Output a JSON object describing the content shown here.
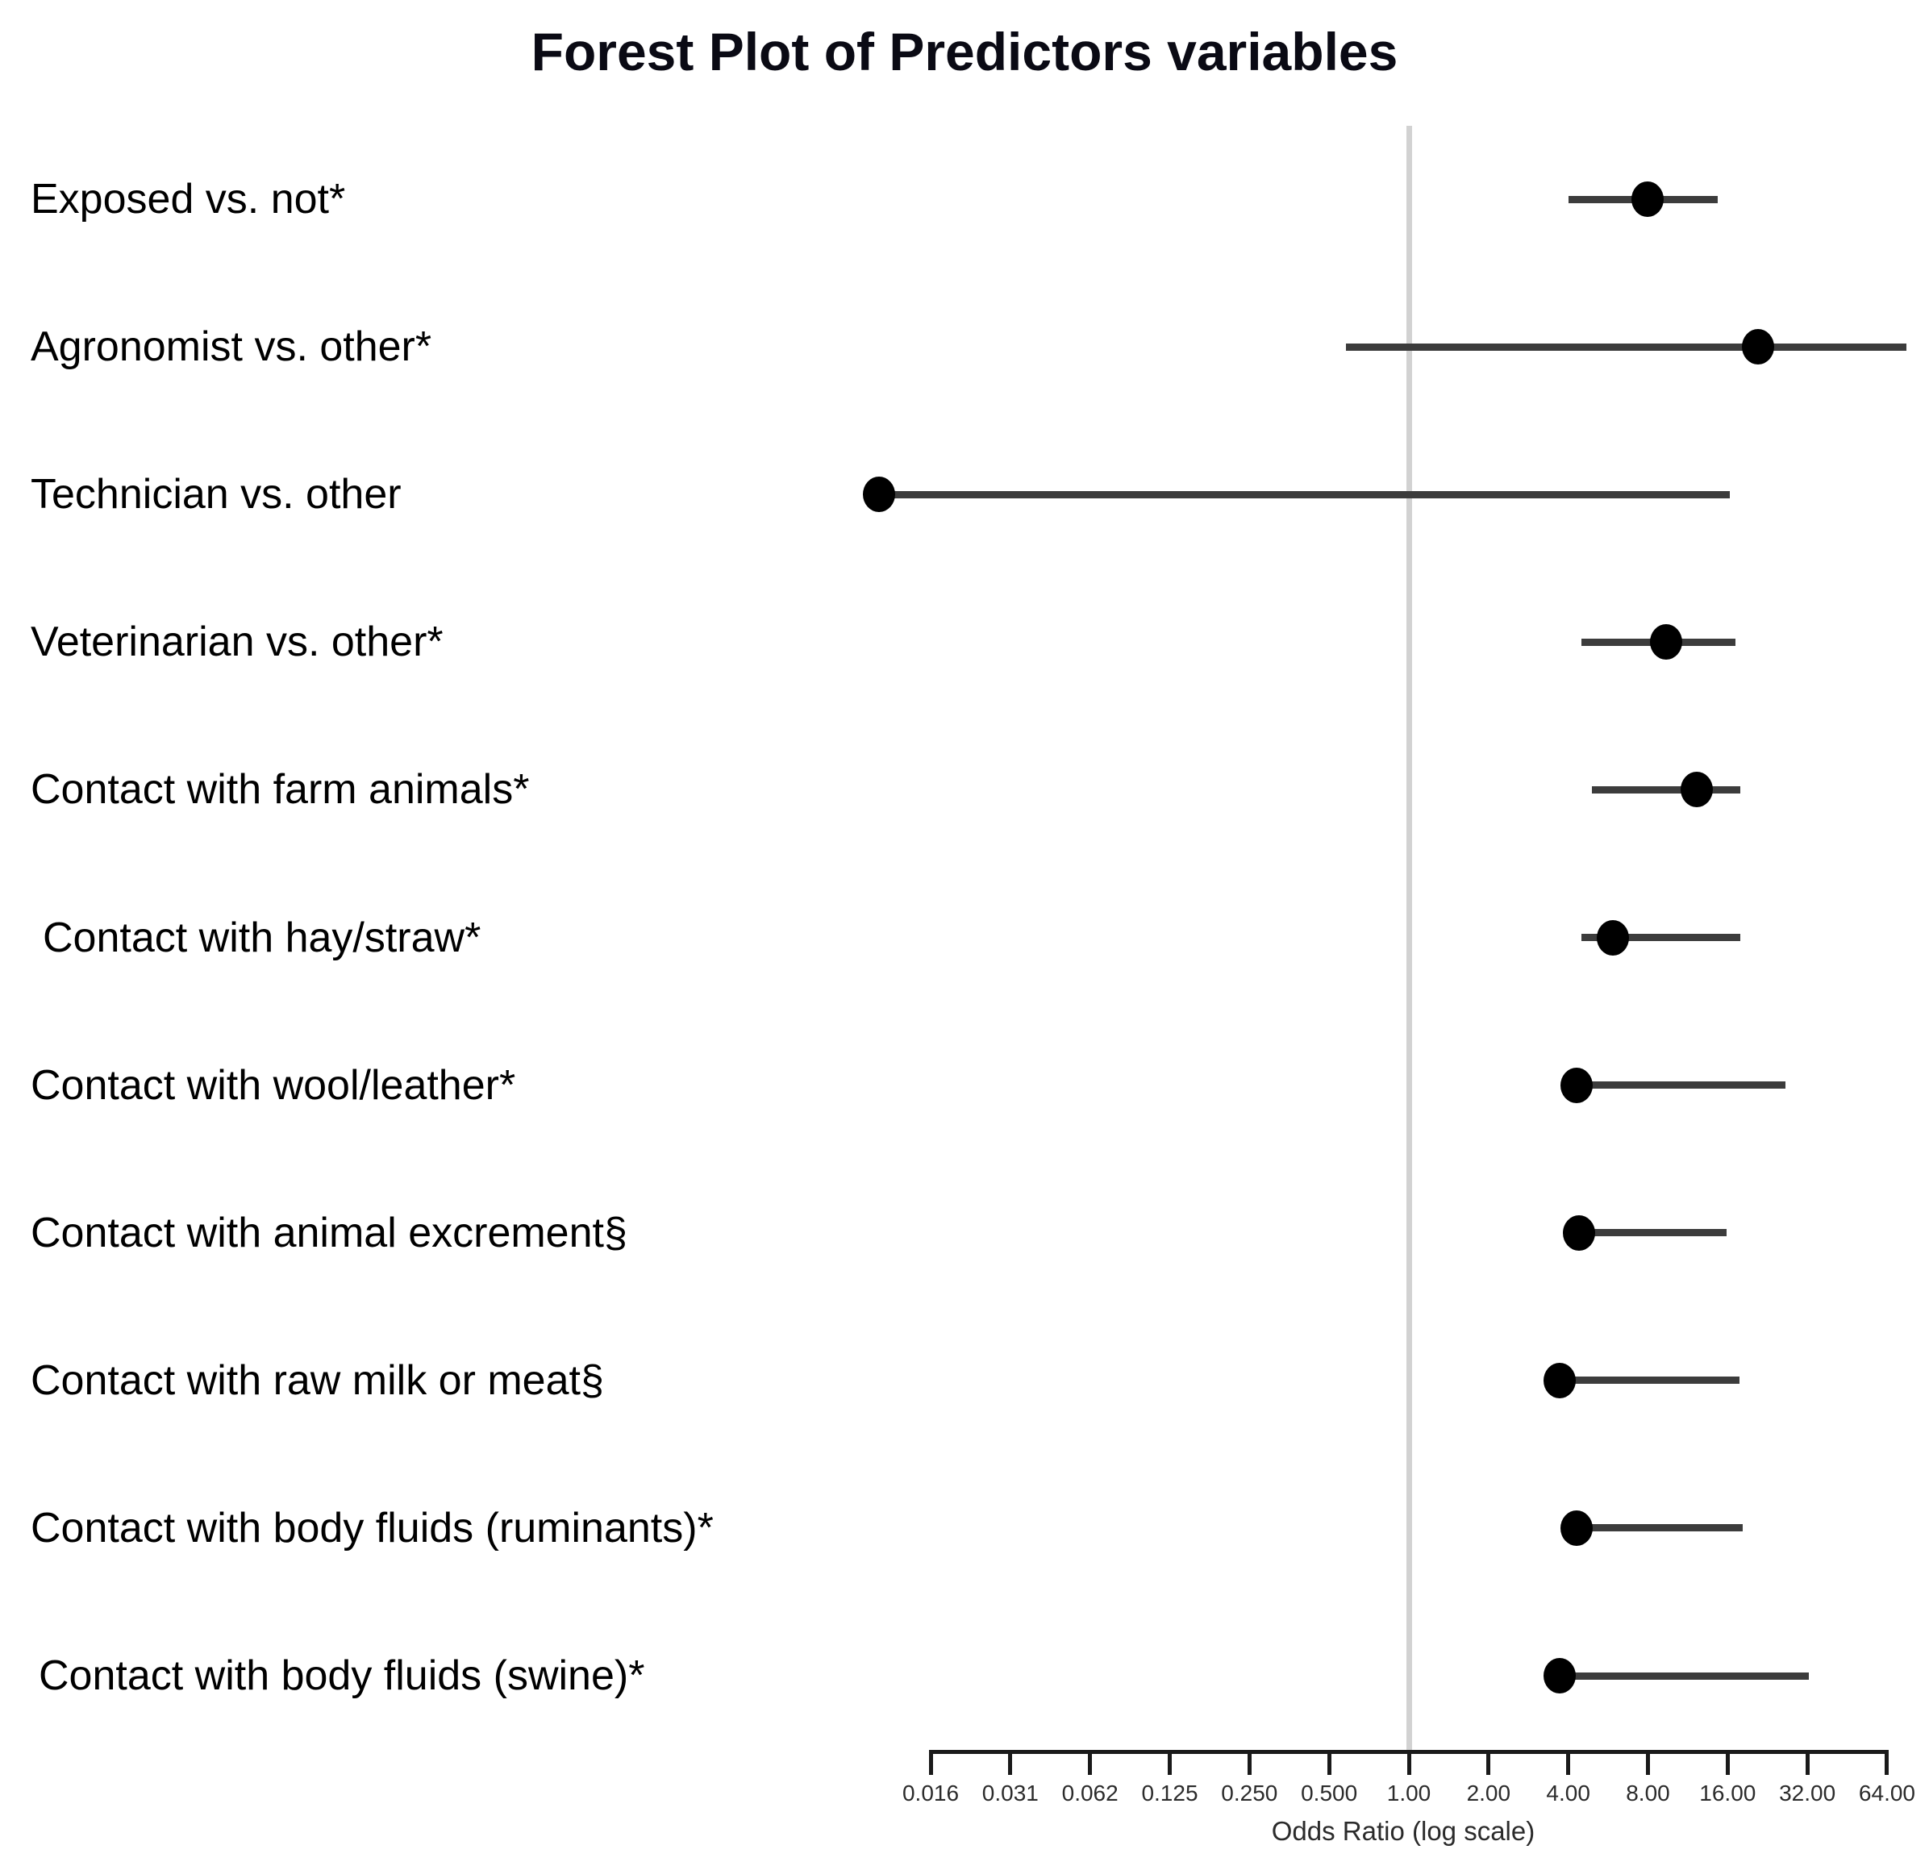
{
  "title": "Forest Plot of Predictors variables",
  "colors": {
    "background": "#ffffff",
    "title_text": "#0a0a14",
    "label_text": "#000000",
    "ci_line": "#3c3c3c",
    "dot": "#000000",
    "reference_line": "#d2d2d2",
    "axis": "#1a1a1a",
    "tick_text": "#2b2b2b"
  },
  "chart_data": {
    "type": "scatter",
    "variant": "forest-plot",
    "title": "Forest Plot of Predictors variables",
    "xlabel": "Odds Ratio (log scale)",
    "ylabel": "",
    "x_scale": "log2",
    "xlim": [
      0.008,
      90
    ],
    "grid": false,
    "legend": "none",
    "reference_line": 1.0,
    "x_ticks": [
      {
        "value": 0.015625,
        "label": "0.016"
      },
      {
        "value": 0.03125,
        "label": "0.031"
      },
      {
        "value": 0.0625,
        "label": "0.062"
      },
      {
        "value": 0.125,
        "label": "0.125"
      },
      {
        "value": 0.25,
        "label": "0.250"
      },
      {
        "value": 0.5,
        "label": "0.500"
      },
      {
        "value": 1,
        "label": "1.00"
      },
      {
        "value": 2,
        "label": "2.00"
      },
      {
        "value": 4,
        "label": "4.00"
      },
      {
        "value": 8,
        "label": "8.00"
      },
      {
        "value": 16,
        "label": "16.00"
      },
      {
        "value": 32,
        "label": "32.00"
      },
      {
        "value": 64,
        "label": "64.00"
      }
    ],
    "rows": [
      {
        "label": "Exposed vs. not*",
        "or": 8.0,
        "ci_low": 4.0,
        "ci_high": 14.7
      },
      {
        "label": "Agronomist vs. other*",
        "or": 20.9,
        "ci_low": 0.58,
        "ci_high": 76.0
      },
      {
        "label": "Technician  vs. other",
        "or": 0.01,
        "ci_low": 0.01,
        "ci_high": 16.3
      },
      {
        "label": "Veterinarian  vs. other*",
        "or": 9.4,
        "ci_low": 4.5,
        "ci_high": 17.1
      },
      {
        "label": "Contact with farm animals*",
        "or": 12.2,
        "ci_low": 4.9,
        "ci_high": 17.9
      },
      {
        "label": "Contact with hay/straw*",
        "or": 5.9,
        "ci_low": 4.5,
        "ci_high": 17.9
      },
      {
        "label": "Contact with wool/leather*",
        "or": 4.3,
        "ci_low": 4.3,
        "ci_high": 26.5
      },
      {
        "label": "Contact with animal excrement§",
        "or": 4.4,
        "ci_low": 4.4,
        "ci_high": 15.8
      },
      {
        "label": "Contact with raw milk or meat§",
        "or": 3.7,
        "ci_low": 3.7,
        "ci_high": 17.7
      },
      {
        "label": "Contact with body fluids (ruminants)*",
        "or": 4.3,
        "ci_low": 4.3,
        "ci_high": 18.3
      },
      {
        "label": "Contact with body fluids (swine)*",
        "or": 3.7,
        "ci_low": 3.7,
        "ci_high": 32.4
      }
    ]
  }
}
